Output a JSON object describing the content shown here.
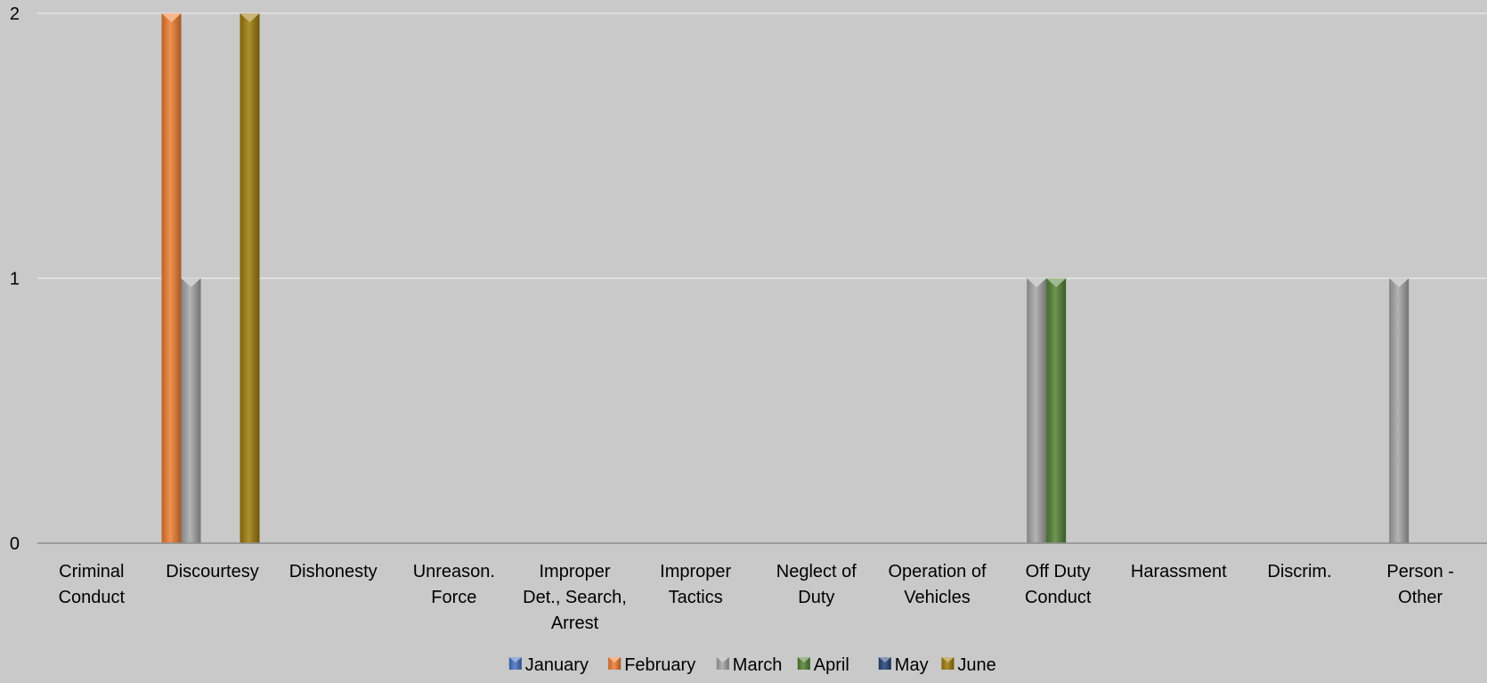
{
  "chart_data": {
    "type": "bar",
    "categories": [
      [
        "Criminal",
        "Conduct"
      ],
      [
        "Discourtesy"
      ],
      [
        "Dishonesty"
      ],
      [
        "Unreason.",
        "Force"
      ],
      [
        "Improper",
        "Det., Search,",
        "Arrest"
      ],
      [
        "Improper",
        "Tactics"
      ],
      [
        "Neglect of",
        "Duty"
      ],
      [
        "Operation of",
        "Vehicles"
      ],
      [
        "Off Duty",
        "Conduct"
      ],
      [
        "Harassment"
      ],
      [
        "Discrim."
      ],
      [
        "Person -",
        "Other"
      ]
    ],
    "series": [
      {
        "name": "January",
        "color": "#4472c4",
        "values": [
          0,
          0,
          0,
          0,
          0,
          0,
          0,
          0,
          0,
          0,
          0,
          0
        ]
      },
      {
        "name": "February",
        "color": "#ed7d31",
        "values": [
          0,
          2,
          0,
          0,
          0,
          0,
          0,
          0,
          0,
          0,
          0,
          0
        ]
      },
      {
        "name": "March",
        "color": "#a5a5a5",
        "values": [
          0,
          1,
          0,
          0,
          0,
          0,
          0,
          0,
          1,
          0,
          0,
          1
        ]
      },
      {
        "name": "April",
        "color": "#548235",
        "values": [
          0,
          0,
          0,
          0,
          0,
          0,
          0,
          0,
          1,
          0,
          0,
          0
        ]
      },
      {
        "name": "May",
        "color": "#264478",
        "values": [
          0,
          0,
          0,
          0,
          0,
          0,
          0,
          0,
          0,
          0,
          0,
          0
        ]
      },
      {
        "name": "June",
        "color": "#9e7c0a",
        "values": [
          0,
          2,
          0,
          0,
          0,
          0,
          0,
          0,
          0,
          0,
          0,
          0
        ]
      }
    ],
    "yticks": [
      "0",
      "1",
      "2"
    ],
    "ylim": [
      0,
      2
    ],
    "grid": true,
    "legend": "bottom"
  }
}
